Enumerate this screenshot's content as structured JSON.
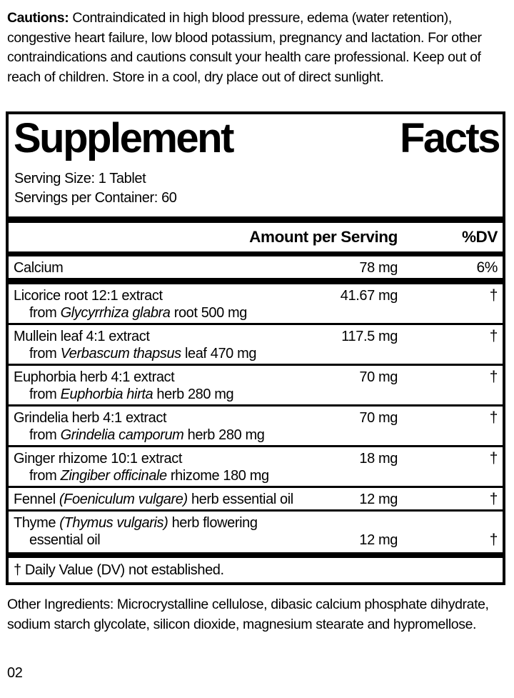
{
  "colors": {
    "ink": "#000000",
    "paper": "#ffffff"
  },
  "cautions": {
    "label": "Cautions:",
    "text": " Contraindicated in high blood pressure, edema (water retention), congestive heart failure, low blood potassium, pregnancy and lactation. For other contraindications and cautions consult your health care professional. Keep out of reach of children. Store in a cool, dry place out of direct sunlight."
  },
  "panel": {
    "title_word1": "Supplement",
    "title_word2": "Facts",
    "serving_size": "Serving Size: 1 Tablet",
    "servings_per_container": "Servings per Container: 60",
    "header": {
      "amount": "Amount per Serving",
      "dv": "%DV"
    },
    "rows": [
      {
        "name": "Calcium",
        "amount": "78 mg",
        "dv": "6%"
      },
      {
        "name": "Licorice root 12:1 extract",
        "sub_prefix": "from ",
        "sub_italic": "Glycyrrhiza glabra",
        "sub_suffix": " root 500 mg",
        "amount": "41.67 mg",
        "dv": "†"
      },
      {
        "name": "Mullein leaf 4:1 extract",
        "sub_prefix": "from ",
        "sub_italic": "Verbascum thapsus",
        "sub_suffix": " leaf 470 mg",
        "amount": "117.5 mg",
        "dv": "†"
      },
      {
        "name": "Euphorbia herb 4:1 extract",
        "sub_prefix": "from ",
        "sub_italic": "Euphorbia hirta",
        "sub_suffix": " herb 280 mg",
        "amount": "70 mg",
        "dv": "†"
      },
      {
        "name": "Grindelia herb 4:1 extract",
        "sub_prefix": "from ",
        "sub_italic": "Grindelia camporum",
        "sub_suffix": " herb 280 mg",
        "amount": "70 mg",
        "dv": "†"
      },
      {
        "name": "Ginger rhizome 10:1 extract",
        "sub_prefix": "from ",
        "sub_italic": "Zingiber officinale",
        "sub_suffix": " rhizome 180 mg",
        "amount": "18 mg",
        "dv": "†"
      },
      {
        "name_prefix": "Fennel ",
        "name_italic": "(Foeniculum vulgare)",
        "name_suffix": " herb essential oil",
        "amount": "12 mg",
        "dv": "†"
      },
      {
        "name_prefix": "Thyme ",
        "name_italic": "(Thymus vulgaris)",
        "name_suffix": " herb flowering",
        "sub_line2": "essential oil",
        "amount": "12 mg",
        "dv": "†"
      }
    ],
    "footnote": "† Daily Value (DV) not established."
  },
  "other_ingredients": {
    "label": "Other Ingredients:",
    "text": " Microcrystalline cellulose, dibasic calcium phosphate dihydrate, sodium starch glycolate, silicon dioxide, magnesium stearate and hypromellose."
  },
  "footer": {
    "code": "02"
  }
}
